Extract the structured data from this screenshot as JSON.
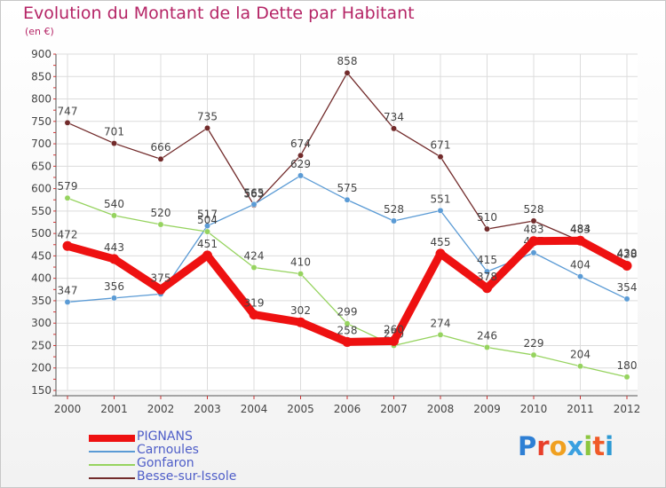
{
  "title": "Evolution du Montant de la Dette par Habitant",
  "subtitle": "(en €)",
  "logo": {
    "letters": [
      "P",
      "r",
      "o",
      "x",
      "i",
      "t",
      "i"
    ],
    "colors": [
      "#2e7fd4",
      "#e83f2a",
      "#f0a020",
      "#3aa0e0",
      "#8cc63f",
      "#f05a28",
      "#2e9ad4"
    ]
  },
  "chart_data": {
    "type": "line",
    "categories": [
      "2000",
      "2001",
      "2002",
      "2003",
      "2004",
      "2005",
      "2006",
      "2007",
      "2008",
      "2009",
      "2010",
      "2011",
      "2012"
    ],
    "ylim": [
      150,
      900
    ],
    "yticks": [
      "150",
      "200",
      "250",
      "300",
      "350",
      "400",
      "450",
      "500",
      "550",
      "600",
      "650",
      "700",
      "750",
      "800",
      "850",
      "900"
    ],
    "grid": true,
    "legend_position": "bottom-left",
    "series": [
      {
        "name": "Besse-sur-Issole",
        "color": "#722b2b",
        "values": [
          747,
          701,
          666,
          735,
          563,
          674,
          858,
          734,
          671,
          510,
          528,
          483,
          430
        ],
        "labels": [
          "747",
          "701",
          "666",
          "735",
          "563",
          "674",
          "858",
          "734",
          "671",
          "510",
          "528",
          "483",
          "430"
        ]
      },
      {
        "name": "Carnoules",
        "color": "#5b9bd5",
        "values": [
          347,
          356,
          365,
          517,
          565,
          629,
          575,
          528,
          551,
          415,
          457,
          404,
          354
        ],
        "labels": [
          "347",
          "356",
          "",
          "517",
          "565",
          "629",
          "575",
          "528",
          "551",
          "415",
          "457",
          "404",
          "354"
        ]
      },
      {
        "name": "Gonfaron",
        "color": "#96d35f",
        "values": [
          579,
          540,
          520,
          504,
          424,
          410,
          299,
          250,
          274,
          246,
          229,
          204,
          180
        ],
        "labels": [
          "579",
          "540",
          "520",
          "504",
          "424",
          "410",
          "299",
          "250",
          "274",
          "246",
          "229",
          "204",
          "180"
        ]
      },
      {
        "name": "PIGNANS",
        "color": "#ee1111",
        "values": [
          472,
          443,
          375,
          451,
          319,
          302,
          258,
          260,
          455,
          378,
          483,
          484,
          428
        ],
        "labels": [
          "472",
          "443",
          "375",
          "451",
          "319",
          "302",
          "258",
          "260",
          "455",
          "378",
          "483",
          "484",
          "428"
        ]
      }
    ],
    "legend": [
      "PIGNANS",
      "Carnoules",
      "Gonfaron",
      "Besse-sur-Issole"
    ]
  }
}
